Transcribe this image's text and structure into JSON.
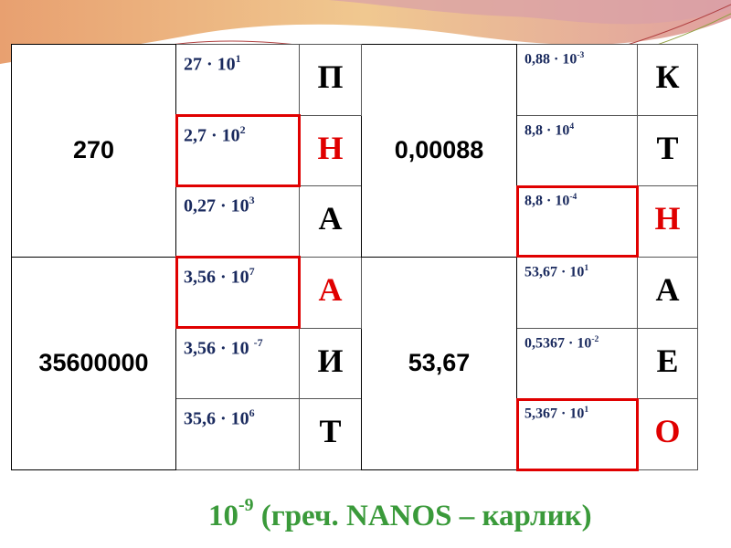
{
  "colors": {
    "highlight": "#e00000",
    "expression": "#1a2a5e",
    "caption": "#3a9a3a"
  },
  "groups": [
    {
      "number": "270",
      "rows": [
        {
          "mantissa": "27 · 10",
          "exp": "1",
          "letter": "П",
          "highlighted": false
        },
        {
          "mantissa": "2,7 · 10",
          "exp": "2",
          "letter": "Н",
          "highlighted": true
        },
        {
          "mantissa": "0,27 · 10",
          "exp": "3",
          "letter": "А",
          "highlighted": false
        }
      ]
    },
    {
      "number": "0,00088",
      "rows": [
        {
          "mantissa": "0,88 · 10",
          "exp": "-3",
          "letter": "К",
          "highlighted": false
        },
        {
          "mantissa": "8,8 · 10",
          "exp": "4",
          "letter": "Т",
          "highlighted": false
        },
        {
          "mantissa": "8,8 · 10",
          "exp": "-4",
          "letter": "Н",
          "highlighted": true
        }
      ]
    },
    {
      "number": "35600000",
      "rows": [
        {
          "mantissa": "3,56 · 10",
          "exp": "7",
          "letter": "А",
          "highlighted": true
        },
        {
          "mantissa": "3,56 · 10 ",
          "exp": "-7",
          "letter": "И",
          "highlighted": false
        },
        {
          "mantissa": "35,6 · 10",
          "exp": "6",
          "letter": "Т",
          "highlighted": false
        }
      ]
    },
    {
      "number": "53,67",
      "rows": [
        {
          "mantissa": "53,67 · 10",
          "exp": "1",
          "letter": "А",
          "highlighted": false
        },
        {
          "mantissa": "0,5367 · 10",
          "exp": "-2",
          "letter": "Е",
          "highlighted": false
        },
        {
          "mantissa": "5,367 · 10",
          "exp": "1",
          "letter": "О",
          "highlighted": true
        }
      ]
    }
  ],
  "caption": {
    "base": "10",
    "exp": "-9",
    "text": " (греч. NANOS – карлик)"
  }
}
